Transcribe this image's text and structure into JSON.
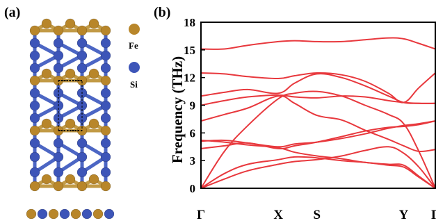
{
  "panel_a": {
    "label": "(a)",
    "legend": [
      {
        "name": "Fe",
        "color": "#b8862a"
      },
      {
        "name": "Si",
        "color": "#3d55b8"
      }
    ]
  },
  "panel_b": {
    "label": "(b)"
  },
  "chart_data": {
    "type": "line",
    "title": "",
    "xlabel": "",
    "ylabel": "Frequency (THz)",
    "ylim": [
      0,
      18
    ],
    "yticks": [
      0,
      3,
      6,
      9,
      12,
      15,
      18
    ],
    "x_points": [
      {
        "label": "Γ",
        "x": 0
      },
      {
        "label": "X",
        "x": 0.33
      },
      {
        "label": "S",
        "x": 0.495
      },
      {
        "label": "Y",
        "x": 0.865
      },
      {
        "label": "Γ",
        "x": 1
      }
    ],
    "zero_line": {
      "y": 0,
      "style": "dashed"
    },
    "line_color": "#e8383d",
    "series": [
      {
        "x": [
          0,
          0.1,
          0.2,
          0.33,
          0.4,
          0.495,
          0.6,
          0.7,
          0.8,
          0.865,
          0.93,
          1
        ],
        "values": [
          15.1,
          15.1,
          15.5,
          15.9,
          16.0,
          15.9,
          15.9,
          16.1,
          16.3,
          16.2,
          15.7,
          15.1
        ]
      },
      {
        "x": [
          0,
          0.1,
          0.2,
          0.33,
          0.4,
          0.495,
          0.6,
          0.7,
          0.8,
          0.865,
          0.93,
          1
        ],
        "values": [
          12.5,
          12.4,
          12.1,
          11.9,
          12.2,
          12.5,
          12.3,
          11.6,
          10.3,
          9.3,
          10.9,
          12.5
        ]
      },
      {
        "x": [
          0,
          0.1,
          0.2,
          0.33,
          0.4,
          0.495,
          0.6,
          0.7,
          0.8,
          0.865,
          0.93,
          1
        ],
        "values": [
          10.0,
          10.4,
          10.7,
          10.3,
          11.4,
          12.4,
          12.0,
          11.1,
          10.0,
          9.3,
          9.2,
          9.2
        ]
      },
      {
        "x": [
          0,
          0.1,
          0.2,
          0.33,
          0.4,
          0.495,
          0.6,
          0.7,
          0.8,
          0.865,
          0.93,
          1
        ],
        "values": [
          9.0,
          9.5,
          9.9,
          10.1,
          9.9,
          9.8,
          10.0,
          9.9,
          9.5,
          9.3,
          9.2,
          9.2
        ]
      },
      {
        "x": [
          0,
          0.1,
          0.2,
          0.33,
          0.4,
          0.495,
          0.6,
          0.7,
          0.8,
          0.865,
          0.93,
          1
        ],
        "values": [
          7.3,
          8.0,
          8.7,
          10.0,
          9.2,
          7.9,
          7.4,
          6.3,
          5.3,
          4.6,
          4.0,
          4.2
        ]
      },
      {
        "x": [
          0,
          0.1,
          0.2,
          0.33,
          0.4,
          0.495,
          0.6,
          0.7,
          0.8,
          0.865,
          0.93,
          1
        ],
        "values": [
          0,
          4.0,
          6.8,
          9.7,
          10.3,
          10.5,
          10.0,
          9.0,
          8.0,
          7.0,
          4.0,
          0
        ]
      },
      {
        "x": [
          0,
          0.1,
          0.2,
          0.33,
          0.4,
          0.495,
          0.6,
          0.7,
          0.8,
          0.865,
          0.93,
          1
        ],
        "values": [
          5.1,
          5.2,
          4.9,
          4.5,
          4.8,
          5.0,
          5.4,
          5.9,
          6.5,
          6.8,
          7.0,
          7.3
        ]
      },
      {
        "x": [
          0,
          0.1,
          0.2,
          0.33,
          0.4,
          0.495,
          0.6,
          0.7,
          0.8,
          0.865,
          0.93,
          1
        ],
        "values": [
          4.3,
          4.6,
          4.9,
          4.3,
          4.6,
          5.0,
          5.6,
          6.2,
          6.6,
          6.7,
          6.9,
          7.3
        ]
      },
      {
        "x": [
          0,
          0.1,
          0.2,
          0.33,
          0.4,
          0.495,
          0.6,
          0.7,
          0.8,
          0.865,
          0.93,
          1
        ],
        "values": [
          5.2,
          5.0,
          4.7,
          4.4,
          3.9,
          3.5,
          3.2,
          2.8,
          2.6,
          2.5,
          1.3,
          0
        ]
      },
      {
        "x": [
          0,
          0.1,
          0.2,
          0.33,
          0.4,
          0.495,
          0.6,
          0.7,
          0.8,
          0.865,
          0.93,
          1
        ],
        "values": [
          0,
          1.6,
          2.6,
          3.1,
          3.4,
          3.3,
          3.0,
          2.8,
          2.5,
          2.3,
          1.2,
          0
        ]
      },
      {
        "x": [
          0,
          0.1,
          0.2,
          0.33,
          0.4,
          0.495,
          0.6,
          0.7,
          0.8,
          0.865,
          0.93,
          1
        ],
        "values": [
          0,
          1.0,
          1.9,
          2.6,
          2.9,
          3.1,
          3.5,
          4.1,
          4.5,
          3.8,
          2.3,
          0
        ]
      }
    ]
  }
}
